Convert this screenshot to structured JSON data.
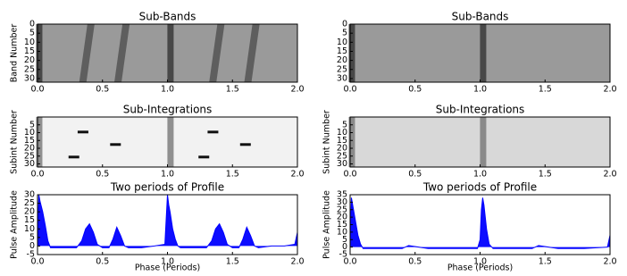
{
  "chart_data": [
    {
      "type": "image",
      "title": "Sub-Bands",
      "y_label": "Band Number",
      "xlim": [
        0,
        2
      ],
      "ylim": [
        32,
        0
      ],
      "xticks": [
        {
          "value": 0,
          "label": "0.0"
        },
        0.5,
        {
          "value": 1,
          "label": "1.0"
        },
        1.5,
        {
          "value": 2,
          "label": "2.0"
        }
      ],
      "yticks": [
        0,
        5,
        10,
        15,
        20,
        25,
        30
      ]
    },
    {
      "type": "image",
      "title": "Sub-Bands",
      "xlim": [
        0,
        2
      ],
      "ylim": [
        32,
        0
      ],
      "xticks": [
        {
          "value": 0,
          "label": "0.0"
        },
        0.5,
        {
          "value": 1,
          "label": "1.0"
        },
        1.5,
        {
          "value": 2,
          "label": "2.0"
        }
      ],
      "yticks": [
        0,
        5,
        10,
        15,
        20,
        25,
        30
      ]
    },
    {
      "type": "image",
      "title": "Sub-Integrations",
      "y_label": "Subint Number",
      "xlim": [
        0,
        2
      ],
      "ylim": [
        32,
        0
      ],
      "xticks": [
        {
          "value": 0,
          "label": "0.0"
        },
        0.5,
        {
          "value": 1,
          "label": "1.0"
        },
        1.5,
        {
          "value": 2,
          "label": "2.0"
        }
      ],
      "yticks": [
        5,
        10,
        15,
        20,
        25,
        30
      ]
    },
    {
      "type": "image",
      "title": "Sub-Integrations",
      "y_label": "Subint Number",
      "xlim": [
        0,
        2
      ],
      "ylim": [
        32,
        0
      ],
      "xticks": [
        {
          "value": 0,
          "label": "0.0"
        },
        0.5,
        {
          "value": 1,
          "label": "1.0"
        },
        1.5,
        {
          "value": 2,
          "label": "2.0"
        }
      ],
      "yticks": [
        5,
        10,
        15,
        20,
        25,
        30
      ]
    },
    {
      "type": "line",
      "title": "Two periods of Profile",
      "x_label": "Phase (Periods)",
      "y_label": "Pulse Amplitude",
      "color": "#0000ff",
      "xlim": [
        0,
        2
      ],
      "ylim": [
        -5,
        30
      ],
      "xticks": [
        {
          "value": 0,
          "label": "0.0"
        },
        0.5,
        {
          "value": 1,
          "label": "1.0"
        },
        1.5,
        {
          "value": 2,
          "label": "2.0"
        }
      ],
      "yticks": [
        -5,
        0,
        5,
        10,
        15,
        20,
        25,
        30
      ],
      "x": [
        0,
        0.01,
        0.02,
        0.04,
        0.06,
        0.08,
        0.1,
        0.2,
        0.3,
        0.34,
        0.37,
        0.4,
        0.43,
        0.46,
        0.5,
        0.55,
        0.58,
        0.61,
        0.64,
        0.67,
        0.7,
        0.8,
        0.9,
        0.98,
        1.0,
        1.01,
        1.02,
        1.04,
        1.06,
        1.08,
        1.1,
        1.2,
        1.3,
        1.34,
        1.37,
        1.4,
        1.43,
        1.46,
        1.5,
        1.55,
        1.58,
        1.61,
        1.64,
        1.67,
        1.7,
        1.8,
        1.9,
        1.98,
        2.0
      ],
      "values": [
        2,
        30,
        26,
        20,
        12,
        3,
        -1,
        -1,
        -1,
        3,
        10,
        13,
        8,
        1,
        -1,
        -1,
        4,
        11,
        6,
        0,
        -1,
        -1,
        0,
        1,
        30,
        24,
        20,
        10,
        4,
        0,
        -1,
        -1,
        -1,
        3,
        10,
        13,
        8,
        1,
        -1,
        -1,
        4,
        11,
        6,
        0,
        -1,
        0,
        0,
        1,
        8
      ]
    },
    {
      "type": "line",
      "title": "Two periods of Profile",
      "x_label": "Phase (Periods)",
      "y_label": "Pulse Amplitude",
      "color": "#0000ff",
      "xlim": [
        0,
        2
      ],
      "ylim": [
        -5,
        35
      ],
      "xticks": [
        {
          "value": 0,
          "label": "0.0"
        },
        0.5,
        {
          "value": 1,
          "label": "1.0"
        },
        1.5,
        {
          "value": 2,
          "label": "2.0"
        }
      ],
      "yticks": [
        -5,
        0,
        5,
        10,
        15,
        20,
        25,
        30,
        35
      ],
      "x": [
        0,
        0.01,
        0.02,
        0.04,
        0.06,
        0.08,
        0.1,
        0.2,
        0.4,
        0.45,
        0.6,
        0.8,
        0.98,
        1.0,
        1.01,
        1.02,
        1.03,
        1.05,
        1.07,
        1.1,
        1.2,
        1.4,
        1.45,
        1.6,
        1.8,
        1.98,
        2.0
      ],
      "values": [
        2,
        33,
        28,
        18,
        8,
        2,
        -1,
        -1,
        -1,
        1,
        -1,
        -1,
        -1,
        5,
        25,
        33,
        28,
        12,
        2,
        -1,
        -1,
        -1,
        1,
        -1,
        -1,
        0,
        8
      ]
    }
  ]
}
